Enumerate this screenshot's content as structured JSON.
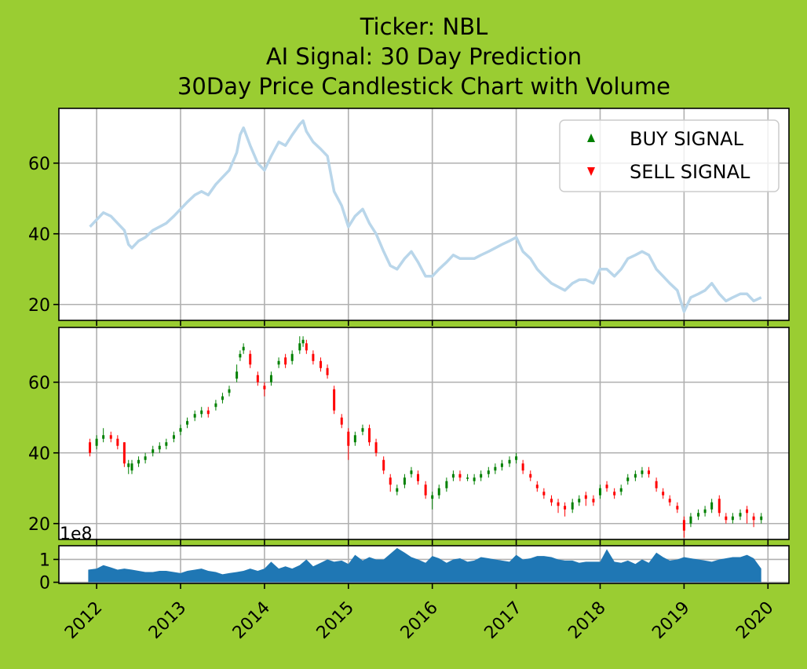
{
  "title": {
    "line1": "Ticker: NBL",
    "line2": "AI Signal: 30 Day Prediction",
    "line3": "30Day Price Candlestick Chart with Volume"
  },
  "legend": {
    "buy_label": "BUY SIGNAL",
    "sell_label": "SELL SIGNAL",
    "buy_color": "#008000",
    "sell_color": "#ff0000",
    "placement": "top-right"
  },
  "volume_offset_label": "1e8",
  "colors": {
    "background": "#9acd32",
    "price_line": "#b9d6ea",
    "candle_up": "#008000",
    "candle_down": "#ff0000",
    "volume_fill": "#1f77b4",
    "grid": "#b0b0b0"
  },
  "chart_data": [
    {
      "type": "line",
      "panel": "price",
      "grid": true,
      "xlim": [
        2011.55,
        2020.25
      ],
      "ylim": [
        15.5,
        75.5
      ],
      "yticks": [
        20,
        40,
        60
      ],
      "x": [
        2011.92,
        2012.0,
        2012.08,
        2012.17,
        2012.25,
        2012.33,
        2012.38,
        2012.42,
        2012.5,
        2012.58,
        2012.67,
        2012.75,
        2012.83,
        2012.92,
        2013.0,
        2013.08,
        2013.17,
        2013.25,
        2013.33,
        2013.42,
        2013.5,
        2013.58,
        2013.67,
        2013.71,
        2013.75,
        2013.83,
        2013.92,
        2014.0,
        2014.08,
        2014.17,
        2014.25,
        2014.33,
        2014.42,
        2014.46,
        2014.5,
        2014.58,
        2014.67,
        2014.75,
        2014.83,
        2014.92,
        2015.0,
        2015.08,
        2015.17,
        2015.25,
        2015.33,
        2015.42,
        2015.5,
        2015.58,
        2015.67,
        2015.75,
        2015.83,
        2015.92,
        2016.0,
        2016.08,
        2016.17,
        2016.25,
        2016.33,
        2016.42,
        2016.5,
        2016.58,
        2016.67,
        2016.75,
        2016.83,
        2016.92,
        2017.0,
        2017.08,
        2017.17,
        2017.25,
        2017.33,
        2017.42,
        2017.5,
        2017.58,
        2017.67,
        2017.75,
        2017.83,
        2017.92,
        2018.0,
        2018.08,
        2018.17,
        2018.25,
        2018.33,
        2018.42,
        2018.5,
        2018.58,
        2018.67,
        2018.75,
        2018.83,
        2018.92,
        2019.0,
        2019.08,
        2019.17,
        2019.25,
        2019.33,
        2019.42,
        2019.5,
        2019.58,
        2019.67,
        2019.75,
        2019.83,
        2019.92
      ],
      "y": [
        42,
        44,
        46,
        45,
        43,
        41,
        37,
        36,
        38,
        39,
        41,
        42,
        43,
        45,
        47,
        49,
        51,
        52,
        51,
        54,
        56,
        58,
        63,
        68,
        70,
        65,
        60,
        58,
        62,
        66,
        65,
        68,
        71,
        72,
        69,
        66,
        64,
        62,
        52,
        48,
        42,
        45,
        47,
        43,
        40,
        35,
        31,
        30,
        33,
        35,
        32,
        28,
        28,
        30,
        32,
        34,
        33,
        33,
        33,
        34,
        35,
        36,
        37,
        38,
        39,
        35,
        33,
        30,
        28,
        26,
        25,
        24,
        26,
        27,
        27,
        26,
        30,
        30,
        28,
        30,
        33,
        34,
        35,
        34,
        30,
        28,
        26,
        24,
        18,
        22,
        23,
        24,
        26,
        23,
        21,
        22,
        23,
        23,
        21,
        22
      ],
      "series": []
    },
    {
      "type": "candlestick",
      "panel": "candles",
      "grid": true,
      "ylim": [
        15.5,
        75.5
      ],
      "yticks": [
        20,
        40,
        60
      ],
      "x": [
        2011.92,
        2012.0,
        2012.08,
        2012.17,
        2012.25,
        2012.33,
        2012.38,
        2012.42,
        2012.5,
        2012.58,
        2012.67,
        2012.75,
        2012.83,
        2012.92,
        2013.0,
        2013.08,
        2013.17,
        2013.25,
        2013.33,
        2013.42,
        2013.5,
        2013.58,
        2013.67,
        2013.71,
        2013.75,
        2013.83,
        2013.92,
        2014.0,
        2014.08,
        2014.17,
        2014.25,
        2014.33,
        2014.42,
        2014.46,
        2014.5,
        2014.58,
        2014.67,
        2014.75,
        2014.83,
        2014.92,
        2015.0,
        2015.08,
        2015.17,
        2015.25,
        2015.33,
        2015.42,
        2015.5,
        2015.58,
        2015.67,
        2015.75,
        2015.83,
        2015.92,
        2016.0,
        2016.08,
        2016.17,
        2016.25,
        2016.33,
        2016.42,
        2016.5,
        2016.58,
        2016.67,
        2016.75,
        2016.83,
        2016.92,
        2017.0,
        2017.08,
        2017.17,
        2017.25,
        2017.33,
        2017.42,
        2017.5,
        2017.58,
        2017.67,
        2017.75,
        2017.83,
        2017.92,
        2018.0,
        2018.08,
        2018.17,
        2018.25,
        2018.33,
        2018.42,
        2018.5,
        2018.58,
        2018.67,
        2018.75,
        2018.83,
        2018.92,
        2019.0,
        2019.08,
        2019.17,
        2019.25,
        2019.33,
        2019.42,
        2019.5,
        2019.58,
        2019.67,
        2019.75,
        2019.83,
        2019.92
      ],
      "open": [
        43,
        42,
        44,
        45,
        44,
        43,
        36,
        35,
        37,
        38,
        40,
        41,
        42,
        44,
        46,
        48,
        50,
        51,
        52,
        53,
        55,
        57,
        61,
        67,
        69,
        68,
        62,
        59,
        60,
        65,
        67,
        66,
        69,
        71,
        71,
        68,
        66,
        64,
        58,
        50,
        46,
        43,
        46,
        47,
        43,
        38,
        33,
        29,
        31,
        34,
        34,
        31,
        27,
        28,
        30,
        33,
        34,
        33,
        32,
        33,
        34,
        35,
        36,
        37,
        38,
        37,
        34,
        31,
        29,
        27,
        26,
        25,
        24,
        26,
        28,
        27,
        28,
        31,
        29,
        29,
        32,
        33,
        34,
        35,
        32,
        29,
        27,
        25,
        21,
        20,
        22,
        23,
        24,
        27,
        22,
        21,
        22,
        24,
        22,
        21
      ],
      "close": [
        40,
        44,
        45,
        44,
        42,
        37,
        37,
        37,
        38,
        39,
        41,
        42,
        43,
        45,
        47,
        49,
        51,
        52,
        51,
        54,
        56,
        58,
        63,
        68,
        70,
        65,
        60,
        58,
        62,
        66,
        65,
        68,
        71,
        72,
        69,
        66,
        64,
        62,
        52,
        48,
        42,
        45,
        47,
        43,
        40,
        35,
        31,
        30,
        33,
        35,
        32,
        28,
        28,
        30,
        32,
        34,
        33,
        33,
        33,
        34,
        35,
        36,
        37,
        38,
        39,
        35,
        33,
        30,
        28,
        26,
        25,
        24,
        26,
        27,
        27,
        26,
        30,
        30,
        28,
        30,
        33,
        34,
        35,
        34,
        30,
        28,
        26,
        24,
        18,
        22,
        23,
        24,
        26,
        23,
        21,
        22,
        23,
        23,
        21,
        22
      ],
      "high": [
        44,
        45,
        47,
        46,
        45,
        43,
        38,
        38,
        39,
        40,
        42,
        43,
        44,
        46,
        48,
        50,
        52,
        53,
        53,
        55,
        57,
        59,
        65,
        69,
        71,
        69,
        63,
        60,
        63,
        67,
        68,
        69,
        73,
        73,
        72,
        69,
        67,
        65,
        59,
        51,
        47,
        46,
        48,
        48,
        44,
        39,
        34,
        31,
        34,
        36,
        35,
        32,
        29,
        31,
        33,
        35,
        35,
        34,
        34,
        35,
        36,
        37,
        38,
        39,
        40,
        38,
        35,
        32,
        30,
        28,
        27,
        26,
        27,
        28,
        29,
        28,
        31,
        32,
        30,
        31,
        34,
        35,
        36,
        36,
        33,
        30,
        28,
        26,
        22,
        23,
        24,
        25,
        27,
        28,
        23,
        23,
        24,
        25,
        23,
        23
      ],
      "low": [
        39,
        41,
        43,
        43,
        41,
        36,
        34,
        34,
        36,
        37,
        39,
        40,
        41,
        43,
        45,
        47,
        49,
        50,
        50,
        52,
        54,
        56,
        60,
        66,
        68,
        64,
        59,
        56,
        59,
        64,
        64,
        65,
        68,
        70,
        68,
        65,
        63,
        61,
        51,
        47,
        38,
        42,
        45,
        42,
        39,
        34,
        29,
        28,
        30,
        33,
        31,
        27,
        24,
        27,
        29,
        32,
        32,
        32,
        31,
        32,
        33,
        34,
        35,
        36,
        37,
        34,
        32,
        29,
        27,
        25,
        23,
        22,
        23,
        25,
        25,
        25,
        27,
        29,
        27,
        28,
        31,
        32,
        33,
        33,
        29,
        27,
        25,
        23,
        16,
        19,
        21,
        22,
        23,
        22,
        20,
        20,
        21,
        20,
        19,
        20
      ]
    },
    {
      "type": "area",
      "panel": "volume",
      "grid": true,
      "ylim": [
        -0.05,
        1.6
      ],
      "yticks": [
        0,
        1
      ],
      "x": [
        2011.9,
        2012.0,
        2012.08,
        2012.17,
        2012.25,
        2012.33,
        2012.42,
        2012.5,
        2012.58,
        2012.67,
        2012.75,
        2012.83,
        2012.92,
        2013.0,
        2013.08,
        2013.17,
        2013.25,
        2013.33,
        2013.42,
        2013.5,
        2013.58,
        2013.67,
        2013.75,
        2013.83,
        2013.92,
        2014.0,
        2014.08,
        2014.17,
        2014.25,
        2014.33,
        2014.42,
        2014.5,
        2014.58,
        2014.67,
        2014.75,
        2014.83,
        2014.92,
        2015.0,
        2015.08,
        2015.17,
        2015.25,
        2015.33,
        2015.42,
        2015.5,
        2015.58,
        2015.67,
        2015.75,
        2015.83,
        2015.92,
        2016.0,
        2016.08,
        2016.17,
        2016.25,
        2016.33,
        2016.42,
        2016.5,
        2016.58,
        2016.67,
        2016.75,
        2016.83,
        2016.92,
        2017.0,
        2017.08,
        2017.17,
        2017.25,
        2017.33,
        2017.42,
        2017.5,
        2017.58,
        2017.67,
        2017.75,
        2017.83,
        2017.92,
        2018.0,
        2018.08,
        2018.17,
        2018.25,
        2018.33,
        2018.42,
        2018.5,
        2018.58,
        2018.67,
        2018.75,
        2018.83,
        2018.92,
        2019.0,
        2019.08,
        2019.17,
        2019.25,
        2019.33,
        2019.42,
        2019.5,
        2019.58,
        2019.67,
        2019.75,
        2019.83,
        2019.92
      ],
      "y": [
        0.55,
        0.6,
        0.75,
        0.65,
        0.55,
        0.6,
        0.55,
        0.5,
        0.45,
        0.45,
        0.5,
        0.5,
        0.45,
        0.4,
        0.5,
        0.55,
        0.6,
        0.5,
        0.45,
        0.35,
        0.4,
        0.45,
        0.5,
        0.6,
        0.5,
        0.6,
        0.9,
        0.6,
        0.7,
        0.6,
        0.75,
        1.0,
        0.7,
        0.85,
        1.0,
        0.9,
        0.95,
        0.8,
        1.2,
        0.95,
        1.1,
        1.0,
        1.0,
        1.25,
        1.5,
        1.3,
        1.1,
        1.0,
        0.85,
        1.15,
        1.05,
        0.85,
        1.0,
        1.05,
        0.9,
        0.95,
        1.1,
        1.05,
        1.0,
        0.95,
        0.9,
        1.2,
        1.0,
        1.05,
        1.15,
        1.15,
        1.1,
        1.0,
        0.95,
        0.95,
        0.85,
        0.9,
        0.9,
        0.9,
        1.45,
        0.9,
        0.85,
        0.95,
        0.8,
        1.0,
        0.85,
        1.3,
        1.1,
        0.95,
        1.0,
        1.1,
        1.05,
        1.0,
        0.95,
        0.9,
        1.0,
        1.05,
        1.1,
        1.1,
        1.2,
        1.05,
        0.6
      ]
    }
  ],
  "x_axis": {
    "ticks": [
      {
        "x": 2012,
        "label": "2012"
      },
      {
        "x": 2013,
        "label": "2013"
      },
      {
        "x": 2014,
        "label": "2014"
      },
      {
        "x": 2015,
        "label": "2015"
      },
      {
        "x": 2016,
        "label": "2016"
      },
      {
        "x": 2017,
        "label": "2017"
      },
      {
        "x": 2018,
        "label": "2018"
      },
      {
        "x": 2019,
        "label": "2019"
      },
      {
        "x": 2020,
        "label": "2020"
      }
    ],
    "label_rotation_deg": -45
  }
}
